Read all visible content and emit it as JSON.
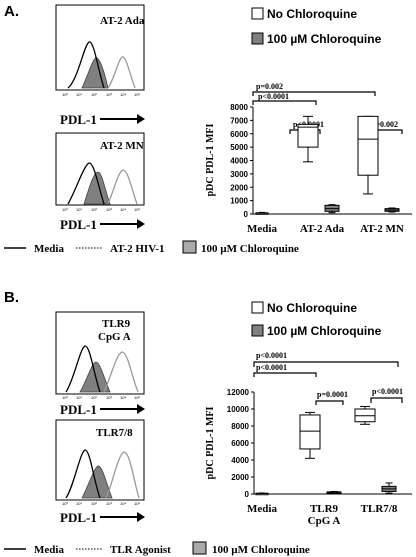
{
  "colors": {
    "ink": "#000000",
    "gray_fill": "#808080",
    "light_gray": "#aaaaaa",
    "white": "#ffffff"
  },
  "panel_a": {
    "label": "A.",
    "hist_top": {
      "title": "AT-2 Ada",
      "xlabel": "PDL-1",
      "ticks": [
        "10⁰",
        "10¹",
        "10²",
        "10³",
        "10⁴",
        "10⁵"
      ]
    },
    "hist_bottom": {
      "title": "AT-2 MN",
      "xlabel": "PDL-1",
      "ticks": [
        "10⁰",
        "10¹",
        "10²",
        "10³",
        "10⁴",
        "10⁵"
      ]
    },
    "legend_box": [
      {
        "label": "No Chloroquine"
      },
      {
        "label": "100 µM Chloroquine"
      }
    ],
    "legend_line": {
      "media": "Media",
      "dotted": "AT-2 HIV-1",
      "chloro": "100 µM Chloroquine"
    },
    "significance": [
      {
        "text": "p=0.002"
      },
      {
        "text": "p<0.0001"
      },
      {
        "text": "p<0.0001"
      },
      {
        "text": "p=0.002"
      }
    ]
  },
  "panel_b": {
    "label": "B.",
    "hist_top": {
      "title": "TLR9",
      "title2": "CpG A",
      "xlabel": "PDL-1",
      "ticks": [
        "10⁰",
        "10¹",
        "10²",
        "10³",
        "10⁴",
        "10⁵"
      ]
    },
    "hist_bottom": {
      "title": "TLR7/8",
      "xlabel": "PDL-1",
      "ticks": [
        "10⁰",
        "10¹",
        "10²",
        "10³",
        "10⁴",
        "10⁵"
      ]
    },
    "legend_box": [
      {
        "label": "No Chloroquine"
      },
      {
        "label": "100 µM Chloroquine"
      }
    ],
    "legend_line": {
      "media": "Media",
      "dotted": "TLR Agonist",
      "chloro": "100 µM Chloroquine"
    },
    "significance": [
      {
        "text": "p<0.0001"
      },
      {
        "text": "p<0.0001"
      },
      {
        "text": "p=0.0001"
      },
      {
        "text": "p<0.0001"
      }
    ]
  },
  "chart_data": [
    {
      "type": "box",
      "panel": "A",
      "ylabel": "pDC PDL-1 MFI",
      "ylim": [
        0,
        8000
      ],
      "yticks": [
        0,
        1000,
        2000,
        3000,
        4000,
        5000,
        6000,
        7000,
        8000
      ],
      "categories": [
        "Media",
        "AT-2 Ada",
        "AT-2 MN"
      ],
      "series": [
        {
          "name": "No Chloroquine",
          "fill": "white",
          "boxes": [
            {
              "category": "Media",
              "min": 20,
              "q1": 40,
              "median": 60,
              "q3": 90,
              "max": 120
            },
            {
              "category": "AT-2 Ada",
              "min": 3900,
              "q1": 5000,
              "median": 6500,
              "q3": 6700,
              "max": 7300
            },
            {
              "category": "AT-2 MN",
              "min": 1500,
              "q1": 2900,
              "median": 5600,
              "q3": 7300,
              "max": 7300
            }
          ]
        },
        {
          "name": "100 µM Chloroquine",
          "fill": "gray",
          "boxes": [
            {
              "category": "AT-2 Ada",
              "min": 100,
              "q1": 200,
              "median": 400,
              "q3": 650,
              "max": 700
            },
            {
              "category": "AT-2 MN",
              "min": 150,
              "q1": 200,
              "median": 300,
              "q3": 400,
              "max": 450
            }
          ]
        }
      ]
    },
    {
      "type": "box",
      "panel": "B",
      "ylabel": "pDC PDL-1 MFI",
      "ylim": [
        0,
        12000
      ],
      "yticks": [
        0,
        2000,
        4000,
        6000,
        8000,
        10000,
        12000
      ],
      "categories": [
        "Media",
        "TLR9 CpG A",
        "TLR7/8"
      ],
      "category_lines": [
        [
          "Media"
        ],
        [
          "TLR9",
          "CpG A"
        ],
        [
          "TLR7/8"
        ]
      ],
      "series": [
        {
          "name": "No Chloroquine",
          "fill": "white",
          "boxes": [
            {
              "category": "Media",
              "min": 20,
              "q1": 40,
              "median": 60,
              "q3": 90,
              "max": 120
            },
            {
              "category": "TLR9 CpG A",
              "min": 4200,
              "q1": 5300,
              "median": 7400,
              "q3": 9300,
              "max": 9600
            },
            {
              "category": "TLR7/8",
              "min": 8200,
              "q1": 8500,
              "median": 9200,
              "q3": 10000,
              "max": 10300
            }
          ]
        },
        {
          "name": "100 µM Chloroquine",
          "fill": "gray",
          "boxes": [
            {
              "category": "TLR9 CpG A",
              "min": 50,
              "q1": 80,
              "median": 150,
              "q3": 250,
              "max": 300
            },
            {
              "category": "TLR7/8",
              "min": 100,
              "q1": 300,
              "median": 600,
              "q3": 900,
              "max": 1300
            }
          ]
        }
      ]
    }
  ]
}
